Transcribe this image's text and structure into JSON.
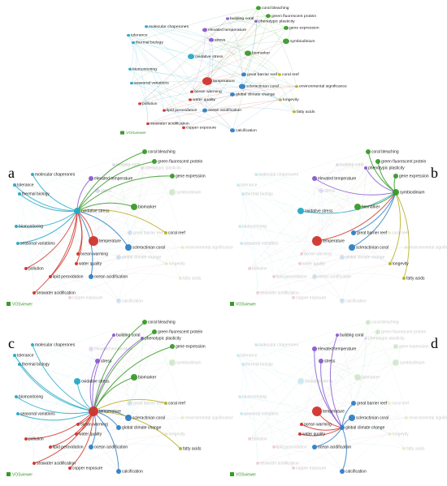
{
  "logo": "VOSviewer",
  "panels": [
    {
      "label": null
    },
    {
      "label": "a"
    },
    {
      "label": "b"
    },
    {
      "label": "c"
    },
    {
      "label": "d"
    }
  ],
  "nodes": [
    {
      "label": "coral bleaching",
      "color": "#3a9a2a"
    },
    {
      "label": "green fluorescent protein",
      "color": "#3a9a2a"
    },
    {
      "label": "gene expression",
      "color": "#3a9a2a"
    },
    {
      "label": "molecular chaperones",
      "color": "#27a9c7"
    },
    {
      "label": "tolerance",
      "color": "#27a9c7"
    },
    {
      "label": "thermal biology",
      "color": "#27a9c7"
    },
    {
      "label": "elevated temperature",
      "color": "#8a5ad0"
    },
    {
      "label": "oxidative stress",
      "color": "#27a9c7"
    },
    {
      "label": "biomarker",
      "color": "#3a9a2a"
    },
    {
      "label": "biomonitoring",
      "color": "#27a9c7"
    },
    {
      "label": "seasonal variations",
      "color": "#27a9c7"
    },
    {
      "label": "temperature",
      "color": "#d0342c"
    },
    {
      "label": "scleractinian coral",
      "color": "#2f7ec4"
    },
    {
      "label": "coral reef",
      "color": "#b8b020"
    },
    {
      "label": "global climate change",
      "color": "#2f7ec4"
    },
    {
      "label": "water quality",
      "color": "#d0342c"
    },
    {
      "label": "ocean warming",
      "color": "#d0342c"
    },
    {
      "label": "pollution",
      "color": "#d0342c"
    },
    {
      "label": "ocean acidification",
      "color": "#2f7ec4"
    },
    {
      "label": "seawater acidification",
      "color": "#d0342c"
    },
    {
      "label": "calcification",
      "color": "#2f7ec4"
    },
    {
      "label": "great barrier reef",
      "color": "#2f7ec4"
    },
    {
      "label": "symbiodinium",
      "color": "#3a9a2a"
    },
    {
      "label": "fatty acids",
      "color": "#b8b020"
    },
    {
      "label": "copper exposure",
      "color": "#d0342c"
    },
    {
      "label": "lipid peroxidation",
      "color": "#d0342c"
    },
    {
      "label": "phenotypic plasticity",
      "color": "#8a5ad0"
    },
    {
      "label": "building coral",
      "color": "#8a5ad0"
    },
    {
      "label": "stress",
      "color": "#8a5ad0"
    },
    {
      "label": "longevity",
      "color": "#b8b020"
    },
    {
      "label": "environmental significance",
      "color": "#b8b020"
    }
  ]
}
